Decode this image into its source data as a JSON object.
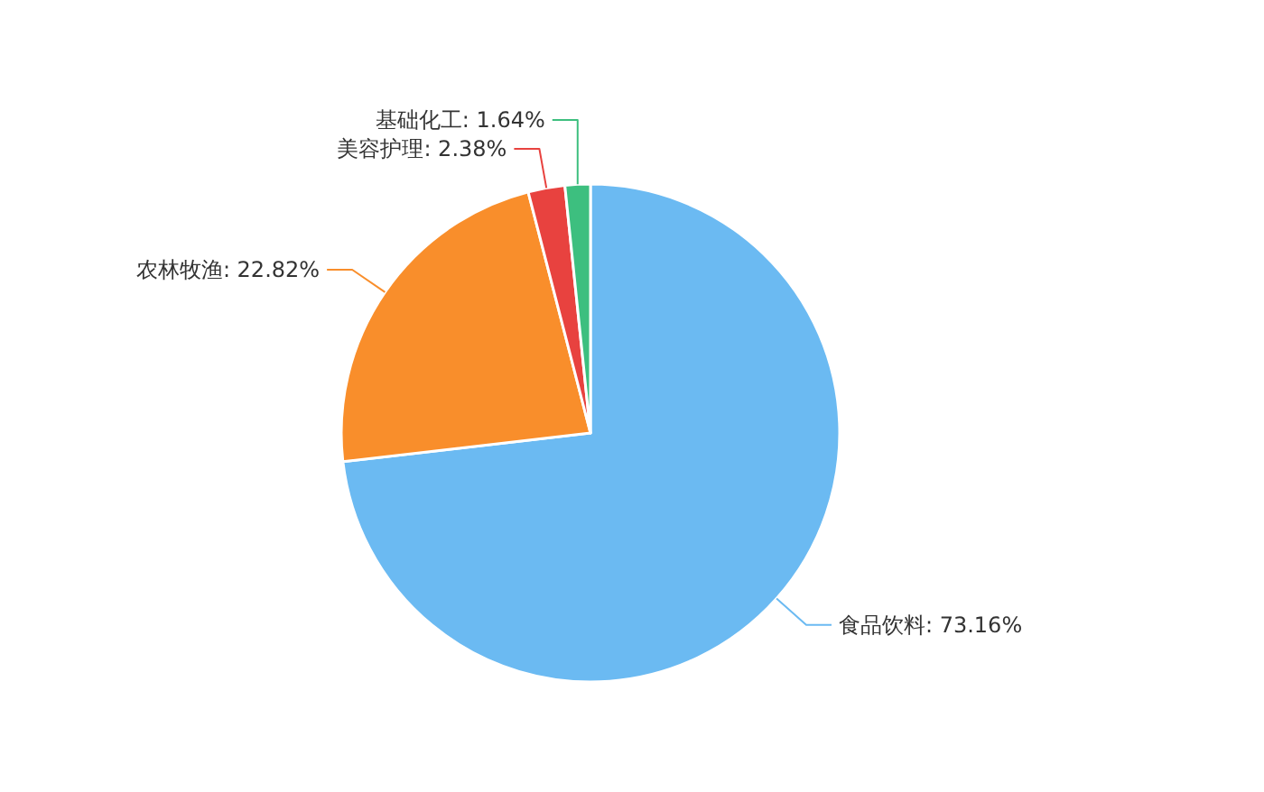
{
  "chart_data": {
    "type": "pie",
    "categories": [
      "食品饮料",
      "农林牧渔",
      "美容护理",
      "基础化工"
    ],
    "values": [
      73.16,
      22.82,
      2.38,
      1.64
    ],
    "value_labels": [
      "73.16%",
      "22.82%",
      "2.38%",
      "1.64%"
    ],
    "colors": [
      "#6bbaf2",
      "#f98e2b",
      "#e8423f",
      "#3dbf7f"
    ]
  }
}
